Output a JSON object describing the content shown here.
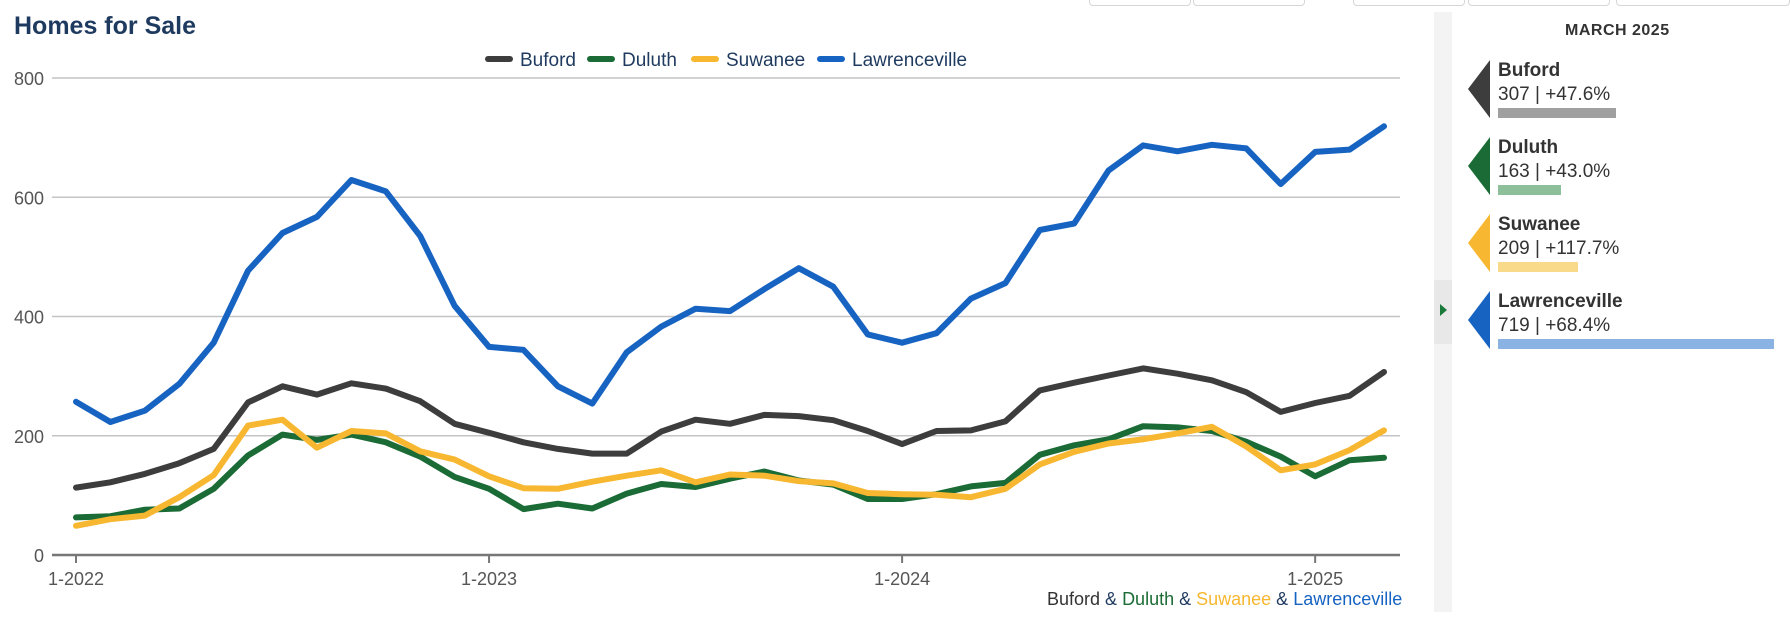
{
  "header": {
    "title": "Homes for Sale"
  },
  "sidebar": {
    "month": "MARCH 2025",
    "cards": [
      {
        "name": "Buford",
        "stat": "307 | +47.6%",
        "value": 307,
        "color": "#3d3d3d",
        "bar_color": "#a0a0a0"
      },
      {
        "name": "Duluth",
        "stat": "163 | +43.0%",
        "value": 163,
        "color": "#1a6b35",
        "bar_color": "#8cbf9a"
      },
      {
        "name": "Suwanee",
        "stat": "209 | +117.7%",
        "value": 209,
        "color": "#f7b731",
        "bar_color": "#f9d98a"
      },
      {
        "name": "Lawrenceville",
        "stat": "719 | +68.4%",
        "value": 719,
        "color": "#1763c2",
        "bar_color": "#8ab2e3"
      }
    ]
  },
  "footer": {
    "names": [
      "Buford",
      "Duluth",
      "Suwanee",
      "Lawrenceville"
    ],
    "sep": " & "
  },
  "chart_data": {
    "type": "line",
    "title": "Homes for Sale",
    "xlabel": "",
    "ylabel": "",
    "ylim": [
      0,
      800
    ],
    "yticks": [
      "0",
      "200",
      "400",
      "600",
      "800"
    ],
    "xticks": [
      {
        "label": "1-2022",
        "index": 0
      },
      {
        "label": "1-2023",
        "index": 12
      },
      {
        "label": "1-2024",
        "index": 24
      },
      {
        "label": "1-2025",
        "index": 36
      }
    ],
    "x_count": 39,
    "grid": true,
    "legend": "top-center",
    "series": [
      {
        "name": "Buford",
        "color": "#3d3d3d",
        "values": [
          113,
          122,
          136,
          154,
          178,
          256,
          283,
          269,
          288,
          279,
          258,
          220,
          205,
          189,
          178,
          170,
          170,
          207,
          227,
          220,
          235,
          233,
          226,
          208,
          186,
          208,
          209,
          224,
          276,
          289,
          301,
          313,
          304,
          293,
          273,
          240,
          255,
          267,
          307
        ]
      },
      {
        "name": "Duluth",
        "color": "#1a6b35",
        "values": [
          63,
          65,
          76,
          78,
          111,
          167,
          202,
          193,
          202,
          189,
          165,
          131,
          111,
          77,
          86,
          78,
          103,
          119,
          114,
          128,
          140,
          125,
          118,
          94,
          94,
          102,
          115,
          121,
          168,
          184,
          194,
          216,
          214,
          208,
          190,
          165,
          132,
          159,
          163
        ]
      },
      {
        "name": "Suwanee",
        "color": "#f7b731",
        "values": [
          49,
          60,
          66,
          97,
          134,
          217,
          227,
          180,
          208,
          204,
          174,
          160,
          132,
          112,
          111,
          123,
          133,
          142,
          122,
          135,
          133,
          124,
          120,
          104,
          102,
          101,
          97,
          111,
          152,
          173,
          187,
          194,
          204,
          215,
          182,
          142,
          152,
          176,
          209
        ]
      },
      {
        "name": "Lawrenceville",
        "color": "#1763c2",
        "values": [
          257,
          223,
          242,
          287,
          356,
          477,
          540,
          567,
          629,
          610,
          535,
          418,
          349,
          344,
          283,
          254,
          340,
          383,
          413,
          409,
          446,
          481,
          450,
          370,
          356,
          372,
          430,
          456,
          545,
          556,
          645,
          687,
          677,
          688,
          682,
          622,
          676,
          680,
          719
        ]
      }
    ]
  }
}
